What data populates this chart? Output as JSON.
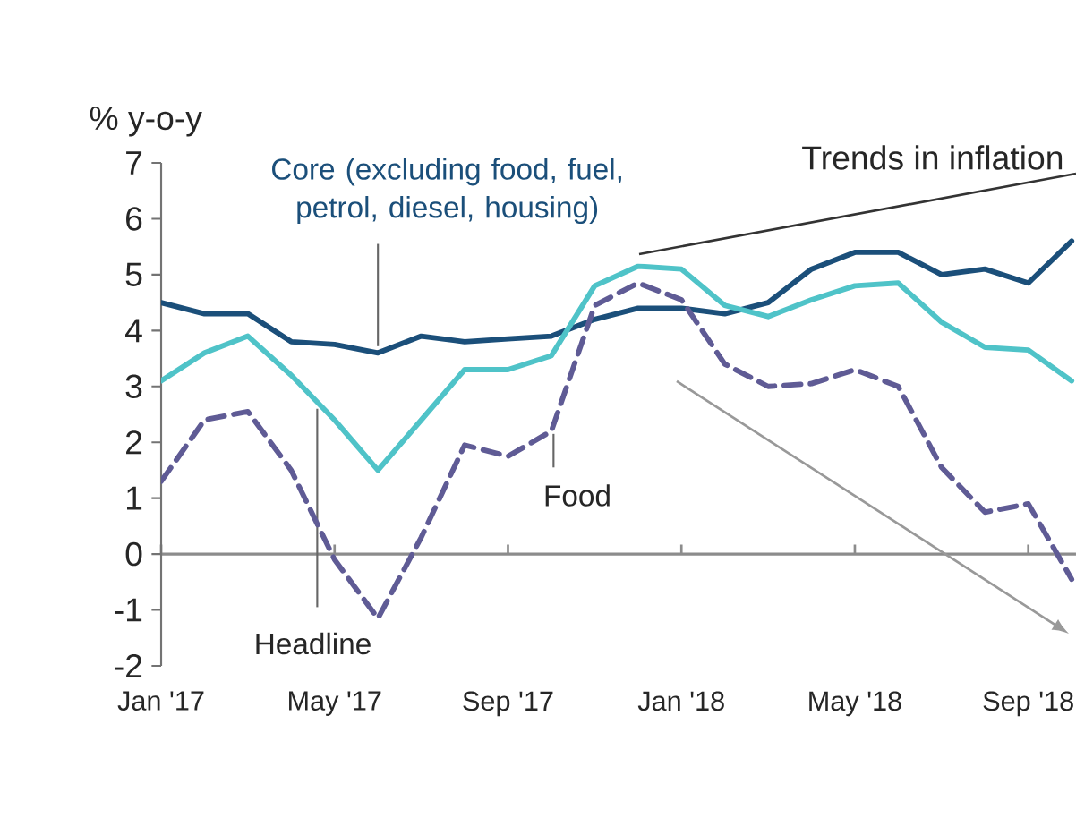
{
  "chart_data": {
    "type": "line",
    "title": "Trends in inflation",
    "ylabel": "% y-o-y",
    "x": [
      "2017-01",
      "2017-02",
      "2017-03",
      "2017-04",
      "2017-05",
      "2017-06",
      "2017-07",
      "2017-08",
      "2017-09",
      "2017-10",
      "2017-11",
      "2017-12",
      "2018-01",
      "2018-02",
      "2018-03",
      "2018-04",
      "2018-05",
      "2018-06",
      "2018-07",
      "2018-08",
      "2018-09",
      "2018-10"
    ],
    "xlim": [
      "2017-01",
      "2018-10-04"
    ],
    "xticks": [
      {
        "value": "2017-01",
        "label": "Jan '17"
      },
      {
        "value": "2017-05",
        "label": "May '17"
      },
      {
        "value": "2017-09",
        "label": "Sep '17"
      },
      {
        "value": "2018-01",
        "label": "Jan '18"
      },
      {
        "value": "2018-05",
        "label": "May '18"
      },
      {
        "value": "2018-09",
        "label": "Sep '18"
      }
    ],
    "ylim": [
      -2,
      7
    ],
    "yticks": [
      -2,
      -1,
      0,
      1,
      2,
      3,
      4,
      5,
      6,
      7
    ],
    "legend": false,
    "series": [
      {
        "name": "Core (excluding food, fuel, petrol, diesel, housing)",
        "color": "#1b4f7a",
        "line_style": "solid",
        "values": [
          4.5,
          4.3,
          4.3,
          3.8,
          3.75,
          3.6,
          3.9,
          3.8,
          3.85,
          3.9,
          4.2,
          4.4,
          4.4,
          4.3,
          4.5,
          5.1,
          5.4,
          5.4,
          5.0,
          5.1,
          4.85,
          5.6
        ]
      },
      {
        "name": "Headline",
        "color": "#4fc3c8",
        "line_style": "solid",
        "values": [
          3.1,
          3.6,
          3.9,
          3.2,
          2.4,
          1.5,
          2.4,
          3.3,
          3.3,
          3.55,
          4.8,
          5.15,
          5.1,
          4.45,
          4.25,
          4.55,
          4.8,
          4.85,
          4.15,
          3.7,
          3.65,
          3.1
        ]
      },
      {
        "name": "Food",
        "color": "#5f5b95",
        "line_style": "dashed",
        "values": [
          1.3,
          2.4,
          2.55,
          1.5,
          -0.1,
          -1.15,
          0.3,
          1.95,
          1.75,
          2.2,
          4.45,
          4.85,
          4.55,
          3.4,
          3.0,
          3.05,
          3.3,
          3.0,
          1.55,
          0.75,
          0.9,
          -0.45
        ]
      }
    ]
  }
}
